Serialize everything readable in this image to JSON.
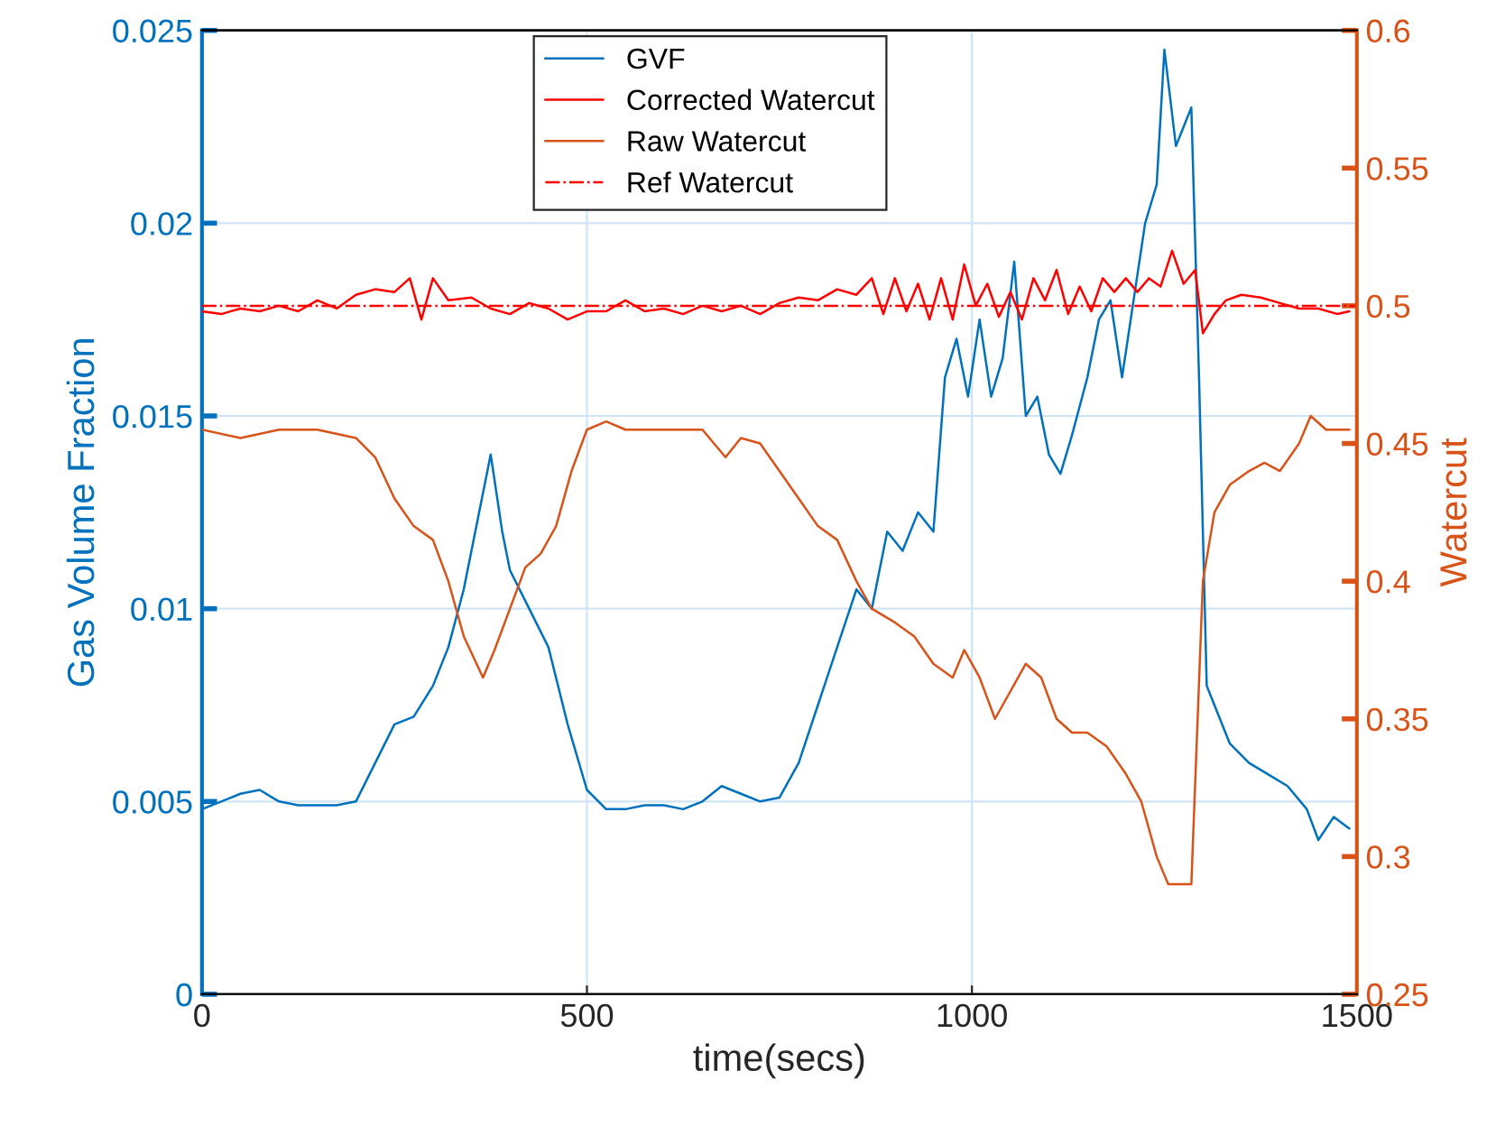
{
  "chart_data": {
    "type": "line",
    "xlabel": "time(secs)",
    "ylabel": "Gas Volume Fraction",
    "y2label": "Watercut",
    "xlim": [
      0,
      1500
    ],
    "xticks": [
      0,
      500,
      1000,
      1500
    ],
    "ylim": [
      0,
      0.025
    ],
    "yticks": [
      0,
      0.005,
      0.01,
      0.015,
      0.02,
      0.025
    ],
    "y2lim": [
      0.25,
      0.6
    ],
    "y2ticks": [
      0.25,
      0.3,
      0.35,
      0.4,
      0.45,
      0.5,
      0.55,
      0.6
    ],
    "grid": true,
    "legend": "top",
    "marker": "none",
    "series": [
      {
        "name": "GVF",
        "color": "#0072bd",
        "line_style": "solid",
        "x": [
          0,
          25,
          50,
          75,
          100,
          125,
          150,
          175,
          200,
          225,
          250,
          275,
          300,
          320,
          340,
          360,
          375,
          390,
          400,
          425,
          450,
          475,
          500,
          525,
          550,
          575,
          600,
          625,
          650,
          675,
          700,
          725,
          750,
          775,
          800,
          825,
          850,
          870,
          890,
          910,
          930,
          950,
          965,
          980,
          995,
          1010,
          1025,
          1040,
          1055,
          1070,
          1085,
          1100,
          1115,
          1130,
          1150,
          1165,
          1180,
          1195,
          1210,
          1225,
          1240,
          1250,
          1265,
          1275,
          1285,
          1295,
          1305,
          1315,
          1335,
          1360,
          1385,
          1410,
          1435,
          1450,
          1470,
          1490
        ],
        "values": [
          0.0048,
          0.005,
          0.0052,
          0.0053,
          0.005,
          0.0049,
          0.0049,
          0.0049,
          0.005,
          0.006,
          0.007,
          0.0072,
          0.008,
          0.009,
          0.0105,
          0.0125,
          0.014,
          0.012,
          0.011,
          0.01,
          0.009,
          0.007,
          0.0053,
          0.0048,
          0.0048,
          0.0049,
          0.0049,
          0.0048,
          0.005,
          0.0054,
          0.0052,
          0.005,
          0.0051,
          0.006,
          0.0075,
          0.009,
          0.0105,
          0.01,
          0.012,
          0.0115,
          0.0125,
          0.012,
          0.016,
          0.017,
          0.0155,
          0.0175,
          0.0155,
          0.0165,
          0.019,
          0.015,
          0.0155,
          0.014,
          0.0135,
          0.0145,
          0.016,
          0.0175,
          0.018,
          0.016,
          0.018,
          0.02,
          0.021,
          0.0245,
          0.022,
          0.0225,
          0.023,
          0.016,
          0.008,
          0.0075,
          0.0065,
          0.006,
          0.0057,
          0.0054,
          0.0048,
          0.004,
          0.0046,
          0.0043
        ]
      },
      {
        "name": "Corrected Watercut",
        "color": "#ff0000",
        "line_style": "solid",
        "axis": "y2",
        "x": [
          0,
          25,
          50,
          75,
          100,
          125,
          150,
          175,
          200,
          225,
          250,
          270,
          285,
          300,
          320,
          350,
          375,
          400,
          425,
          450,
          475,
          500,
          525,
          550,
          575,
          600,
          625,
          650,
          675,
          700,
          725,
          750,
          775,
          800,
          825,
          850,
          870,
          885,
          900,
          915,
          930,
          945,
          960,
          975,
          990,
          1005,
          1020,
          1035,
          1050,
          1065,
          1080,
          1095,
          1110,
          1125,
          1140,
          1155,
          1170,
          1185,
          1200,
          1215,
          1230,
          1245,
          1260,
          1275,
          1290,
          1300,
          1315,
          1330,
          1350,
          1375,
          1400,
          1425,
          1450,
          1475,
          1490
        ],
        "values": [
          0.498,
          0.497,
          0.499,
          0.498,
          0.5,
          0.498,
          0.502,
          0.499,
          0.504,
          0.506,
          0.505,
          0.51,
          0.495,
          0.51,
          0.502,
          0.503,
          0.499,
          0.497,
          0.501,
          0.499,
          0.495,
          0.498,
          0.498,
          0.502,
          0.498,
          0.499,
          0.497,
          0.5,
          0.498,
          0.5,
          0.497,
          0.501,
          0.503,
          0.502,
          0.506,
          0.504,
          0.51,
          0.497,
          0.51,
          0.498,
          0.508,
          0.495,
          0.51,
          0.495,
          0.515,
          0.5,
          0.508,
          0.496,
          0.505,
          0.495,
          0.51,
          0.502,
          0.513,
          0.497,
          0.507,
          0.498,
          0.51,
          0.505,
          0.51,
          0.505,
          0.51,
          0.507,
          0.52,
          0.508,
          0.513,
          0.49,
          0.497,
          0.502,
          0.504,
          0.503,
          0.501,
          0.499,
          0.499,
          0.497,
          0.498
        ]
      },
      {
        "name": "Raw Watercut",
        "color": "#d95319",
        "line_style": "solid",
        "axis": "y2",
        "x": [
          0,
          50,
          100,
          150,
          200,
          225,
          250,
          275,
          300,
          320,
          340,
          365,
          380,
          400,
          420,
          440,
          460,
          480,
          500,
          525,
          550,
          600,
          650,
          680,
          700,
          725,
          750,
          775,
          800,
          825,
          850,
          870,
          900,
          925,
          950,
          975,
          990,
          1010,
          1030,
          1050,
          1070,
          1090,
          1110,
          1130,
          1150,
          1175,
          1200,
          1220,
          1240,
          1255,
          1270,
          1285,
          1300,
          1315,
          1335,
          1360,
          1380,
          1400,
          1425,
          1440,
          1460,
          1490
        ],
        "values": [
          0.455,
          0.452,
          0.455,
          0.455,
          0.452,
          0.445,
          0.43,
          0.42,
          0.415,
          0.4,
          0.38,
          0.365,
          0.375,
          0.39,
          0.405,
          0.41,
          0.42,
          0.44,
          0.455,
          0.458,
          0.455,
          0.455,
          0.455,
          0.445,
          0.452,
          0.45,
          0.44,
          0.43,
          0.42,
          0.415,
          0.4,
          0.39,
          0.385,
          0.38,
          0.37,
          0.365,
          0.375,
          0.365,
          0.35,
          0.36,
          0.37,
          0.365,
          0.35,
          0.345,
          0.345,
          0.34,
          0.33,
          0.32,
          0.3,
          0.29,
          0.29,
          0.29,
          0.4,
          0.425,
          0.435,
          0.44,
          0.443,
          0.44,
          0.45,
          0.46,
          0.455,
          0.455
        ]
      },
      {
        "name": "Ref Watercut",
        "color": "#ff0000",
        "line_style": "dashdot",
        "axis": "y2",
        "x": [
          0,
          1500
        ],
        "values": [
          0.5,
          0.5
        ]
      }
    ]
  }
}
